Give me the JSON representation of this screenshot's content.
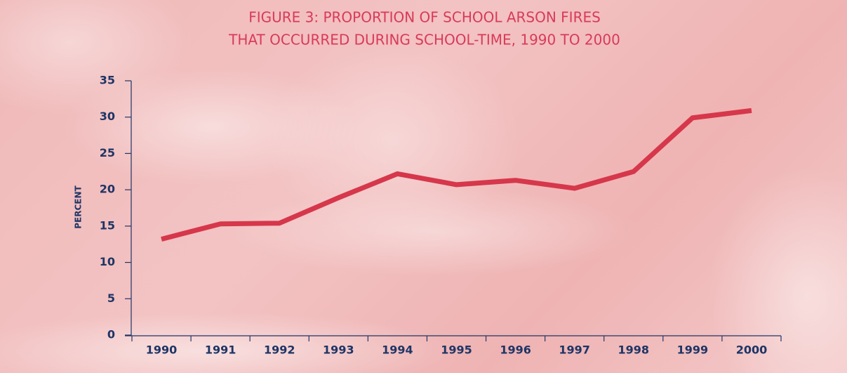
{
  "chart_data": {
    "type": "line",
    "title": [
      "FIGURE 3: PROPORTION OF SCHOOL ARSON FIRES",
      "THAT OCCURRED DURING SCHOOL-TIME, 1990 TO 2000"
    ],
    "y_label": "PERCENT",
    "categories": [
      "1990",
      "1991",
      "1992",
      "1993",
      "1994",
      "1995",
      "1996",
      "1997",
      "1998",
      "1999",
      "2000"
    ],
    "series": [
      {
        "color": "#d6374b",
        "values": [
          13.2,
          15.3,
          15.4,
          18.9,
          22.2,
          20.7,
          21.3,
          20.2,
          22.5,
          29.9,
          30.9
        ]
      }
    ],
    "ylim": [
      0,
      35
    ],
    "yticks": [
      0,
      5,
      10,
      15,
      20,
      25,
      30,
      35
    ]
  }
}
